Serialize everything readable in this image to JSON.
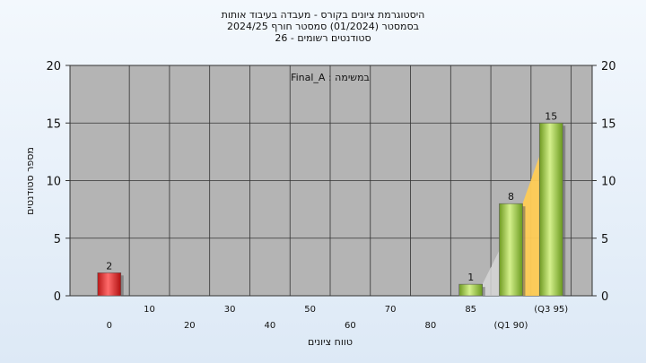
{
  "header": {
    "line1": "היסטוגרמת ציונים בקורס - מעבדה בעיבוד אותות",
    "line2": "בסמסטר  (01/2024)  סמסטר חורף 2024/25",
    "line3": "סטודנטים רשומים - 26"
  },
  "chart_data": {
    "type": "bar",
    "annotation": "במשימה : Final_A",
    "xlabel": "טווח ציונים",
    "ylabel": "מספר סטודנטים",
    "ylim": [
      0,
      20
    ],
    "yticks": [
      0,
      5,
      10,
      15,
      20
    ],
    "grid": true,
    "categories": [
      "0",
      "10",
      "20",
      "30",
      "40",
      "50",
      "60",
      "70",
      "80",
      "85",
      "(Q1 90)",
      "(Q3 95)"
    ],
    "values": [
      2,
      0,
      0,
      0,
      0,
      0,
      0,
      0,
      0,
      1,
      8,
      15
    ],
    "data_labels": [
      "2",
      "",
      "",
      "",
      "",
      "",
      "",
      "",
      "",
      "1",
      "8",
      "15"
    ],
    "bar_colors": [
      "#dd2a2a",
      "",
      "",
      "",
      "",
      "",
      "",
      "",
      "",
      "#8cc43c",
      "#8cc43c",
      "#8cc43c"
    ],
    "quartile_band": {
      "from_category": "85",
      "to_category": "(Q3 95)"
    },
    "colors": {
      "plot_bg": "#b4b4b4",
      "failing": "#dd2a2a",
      "passing": "#8cc43c",
      "q_band": "#ffcc55"
    }
  }
}
